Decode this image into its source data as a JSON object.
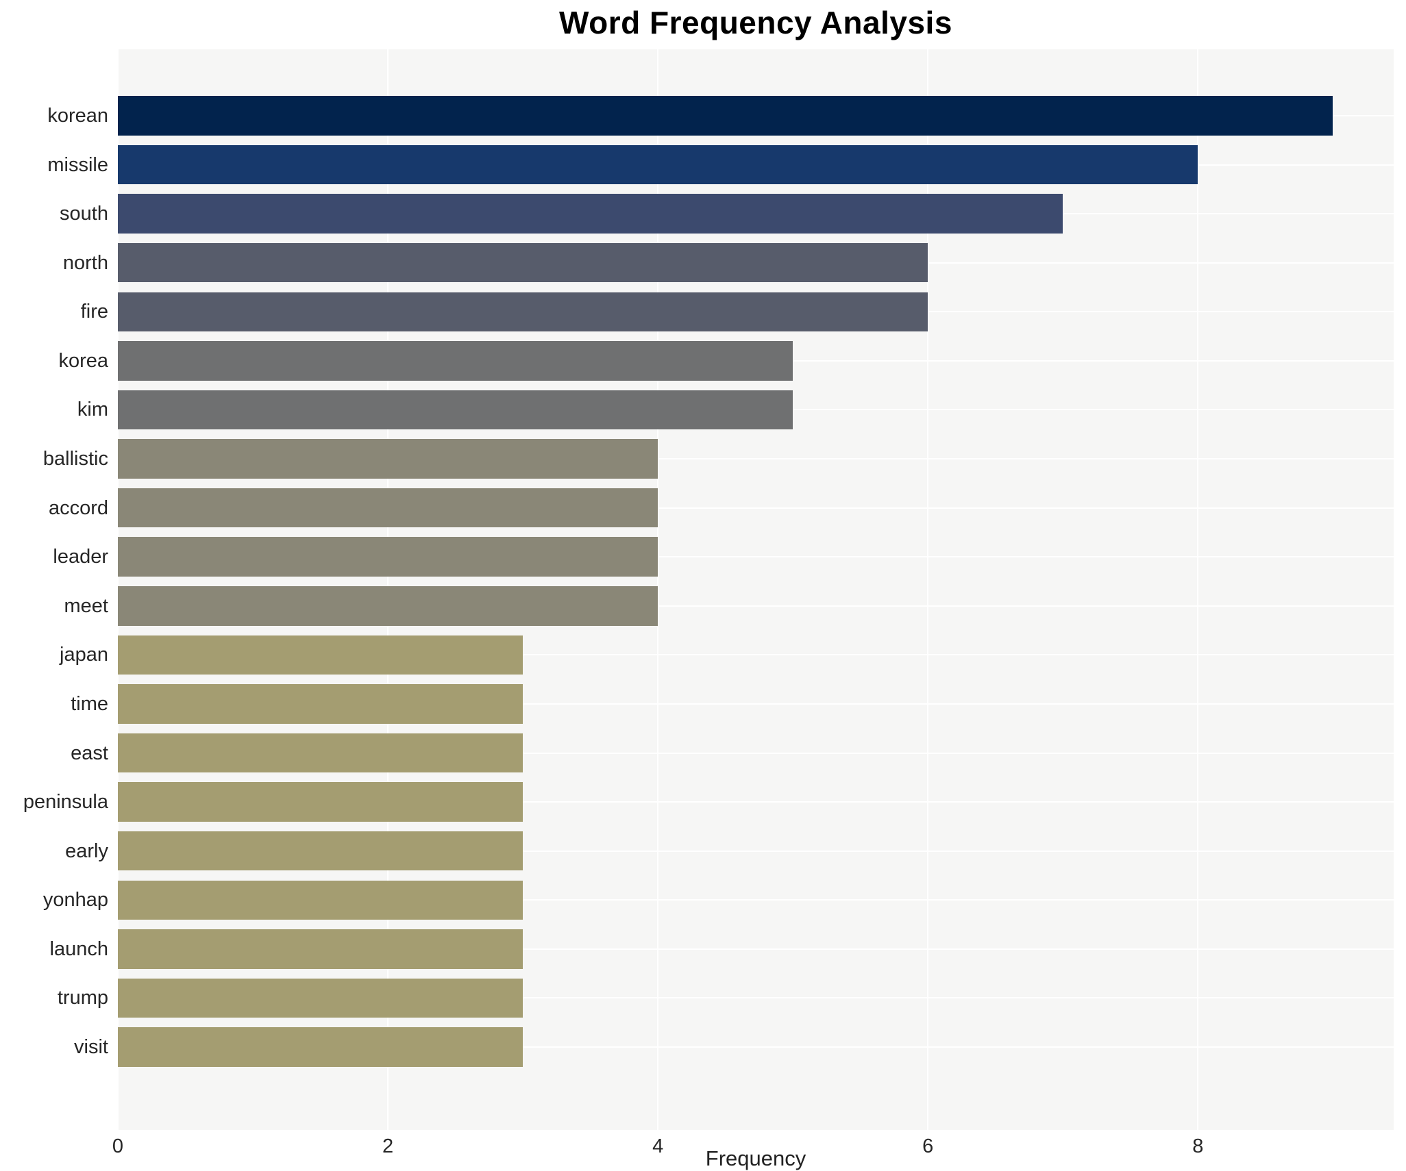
{
  "chart_data": {
    "type": "bar",
    "orientation": "horizontal",
    "title": "Word Frequency Analysis",
    "xlabel": "Frequency",
    "ylabel": "",
    "categories": [
      "korean",
      "missile",
      "south",
      "north",
      "fire",
      "korea",
      "kim",
      "ballistic",
      "accord",
      "leader",
      "meet",
      "japan",
      "time",
      "east",
      "peninsula",
      "early",
      "yonhap",
      "launch",
      "trump",
      "visit"
    ],
    "values": [
      9,
      8,
      7,
      6,
      6,
      5,
      5,
      4,
      4,
      4,
      4,
      3,
      3,
      3,
      3,
      3,
      3,
      3,
      3,
      3
    ],
    "xlim": [
      0,
      9.45
    ],
    "xticks": [
      0,
      2,
      4,
      6,
      8
    ],
    "grid": true,
    "legend": false,
    "colors_by_value": {
      "9": "#02234d",
      "8": "#17396c",
      "7": "#3c4a6e",
      "6": "#575c6b",
      "5": "#6f7071",
      "4": "#8a8777",
      "3": "#a49d71"
    }
  },
  "style": {
    "figure_background": "#ffffff",
    "plot_background": "#f6f6f5",
    "grid_color": "#ffffff",
    "tick_text_color": "#262626",
    "title_color": "#000000"
  }
}
